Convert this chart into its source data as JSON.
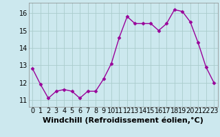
{
  "x": [
    0,
    1,
    2,
    3,
    4,
    5,
    6,
    7,
    8,
    9,
    10,
    11,
    12,
    13,
    14,
    15,
    16,
    17,
    18,
    19,
    20,
    21,
    22,
    23
  ],
  "y": [
    12.8,
    11.9,
    11.1,
    11.5,
    11.6,
    11.5,
    11.1,
    11.5,
    11.5,
    12.2,
    13.1,
    14.6,
    15.8,
    15.4,
    15.4,
    15.4,
    15.0,
    15.4,
    16.2,
    16.1,
    15.5,
    14.3,
    12.9,
    12.0
  ],
  "line_color": "#990099",
  "marker": "D",
  "marker_size": 2.5,
  "bg_color": "#cce8ee",
  "grid_color": "#aacccc",
  "xlabel": "Windchill (Refroidissement éolien,°C)",
  "xlabel_fontsize": 8,
  "tick_fontsize": 7,
  "ylim": [
    10.6,
    16.6
  ],
  "yticks": [
    11,
    12,
    13,
    14,
    15,
    16
  ],
  "xticks": [
    0,
    1,
    2,
    3,
    4,
    5,
    6,
    7,
    8,
    9,
    10,
    11,
    12,
    13,
    14,
    15,
    16,
    17,
    18,
    19,
    20,
    21,
    22,
    23
  ]
}
